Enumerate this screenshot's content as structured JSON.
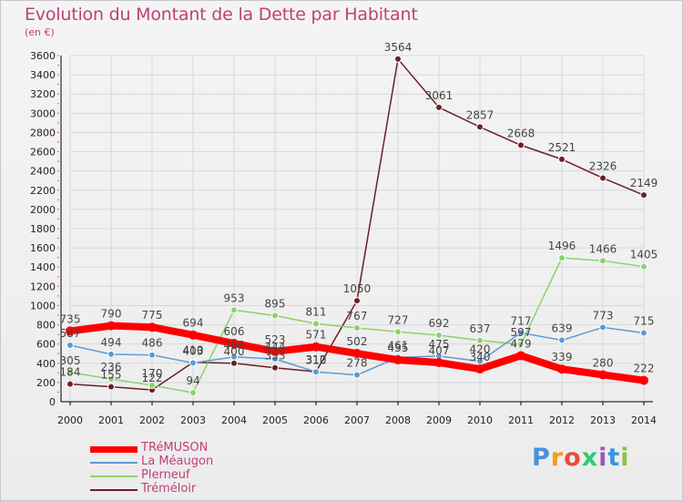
{
  "header": {
    "title": "Evolution du Montant de la Dette par Habitant",
    "subtitle": "(en €)"
  },
  "logo": {
    "letters": [
      "P",
      "r",
      "o",
      "x",
      "i",
      "t",
      "i"
    ],
    "colors": [
      "#4a90d9",
      "#f39c12",
      "#e74c3c",
      "#2ecc71",
      "#9b59b6",
      "#3498db",
      "#8bc34a"
    ]
  },
  "colors": {
    "title": "#c0407a",
    "axis": "#000000",
    "grid": "#d8d8d8"
  },
  "chart_data": {
    "type": "line",
    "x": [
      "2000",
      "2001",
      "2002",
      "2003",
      "2004",
      "2005",
      "2006",
      "2007",
      "2008",
      "2009",
      "2010",
      "2011",
      "2012",
      "2013",
      "2014"
    ],
    "ylim": [
      0,
      3600
    ],
    "yticks": [
      "0",
      "200",
      "400",
      "600",
      "800",
      "1000",
      "1200",
      "1400",
      "1600",
      "1800",
      "2000",
      "2200",
      "2400",
      "2600",
      "2800",
      "3000",
      "3200",
      "3400",
      "3600"
    ],
    "grid": true,
    "legend_position": "bottom-left",
    "series": [
      {
        "name": "TRéMUSON",
        "color": "#ff0000",
        "values": [
          735,
          790,
          775,
          694,
          606,
          523,
          571,
          502,
          435,
          407,
          340,
          479,
          339,
          280,
          222
        ],
        "labels": [
          "735",
          "790",
          "775",
          "694",
          "606",
          "523",
          "571",
          "502",
          "435",
          "407",
          "340",
          "479",
          "339",
          "280",
          "222"
        ]
      },
      {
        "name": "La Méaugon",
        "color": "#5b9bd5",
        "values": [
          587,
          494,
          486,
          403,
          466,
          444,
          310,
          278,
          461,
          475,
          420,
          717,
          639,
          773,
          715
        ],
        "labels": [
          "587",
          "494",
          "486",
          "403",
          "466",
          "444",
          "310",
          "278",
          "461",
          "475",
          "420",
          "717",
          "639",
          "773",
          "715"
        ]
      },
      {
        "name": "Plerneuf",
        "color": "#8cd26b",
        "values": [
          305,
          236,
          170,
          94,
          953,
          895,
          811,
          767,
          727,
          692,
          637,
          597,
          1496,
          1466,
          1405
        ],
        "labels": [
          "305",
          "236",
          "170",
          "94",
          "953",
          "895",
          "811",
          "767",
          "727",
          "692",
          "637",
          "597",
          "1496",
          "1466",
          "1405"
        ]
      },
      {
        "name": "Tréméloir",
        "color": "#6e1e23",
        "values": [
          184,
          155,
          122,
          410,
          400,
          353,
          312,
          1050,
          3564,
          3061,
          2857,
          2668,
          2521,
          2326,
          2149
        ],
        "labels": [
          "184",
          "155",
          "122",
          "410",
          "400",
          "353",
          "312",
          "1050",
          "3564",
          "3061",
          "2857",
          "2668",
          "2521",
          "2326",
          "2149"
        ]
      }
    ]
  }
}
